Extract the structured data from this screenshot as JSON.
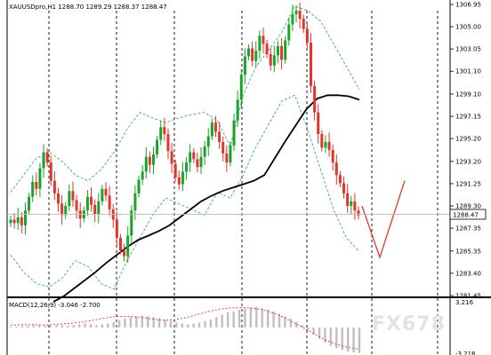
{
  "chart_header": {
    "symbol_text": "XAUUSDpro,H1  1288.70  1289.29  1288.37  1288.47"
  },
  "macd_header": {
    "text": "MACD(12,26,9) -3.046 -2.700"
  },
  "current_price": "1288.47",
  "watermark": "FX678",
  "colors": {
    "bull_candle": "#18a329",
    "bear_candle": "#e0362c",
    "moving_average": "#000000",
    "bollinger_bands": "#33b56a",
    "projection": "#e0362c",
    "period_separator": "#000000",
    "macd_histogram": "#bfbfbf",
    "macd_signal": "#e0362c"
  },
  "chart_data": [
    {
      "type": "candlestick",
      "title": "XAUUSDpro,H1",
      "symbol": "XAUUSDpro",
      "timeframe": "H1",
      "ohlc_last": {
        "open": 1288.7,
        "high": 1289.29,
        "low": 1288.37,
        "close": 1288.47
      },
      "y_ticks": [
        "1306.95",
        "1305.00",
        "1303.05",
        "1301.10",
        "1299.10",
        "1297.15",
        "1295.20",
        "1293.20",
        "1291.25",
        "1289.30",
        "1287.35",
        "1285.35",
        "1283.40",
        "1281.45"
      ],
      "ylim": [
        1281.45,
        1306.95
      ],
      "current_price": 1288.47,
      "closes": [
        1288.1,
        1287.8,
        1288.3,
        1287.6,
        1288.9,
        1290.1,
        1291.4,
        1290.8,
        1292.6,
        1294.0,
        1293.1,
        1291.5,
        1290.4,
        1289.5,
        1288.5,
        1289.3,
        1290.6,
        1289.8,
        1288.9,
        1288.2,
        1288.9,
        1290.1,
        1289.4,
        1288.6,
        1289.7,
        1290.8,
        1290.2,
        1289.0,
        1288.1,
        1286.5,
        1285.4,
        1284.9,
        1286.7,
        1288.9,
        1290.4,
        1291.6,
        1292.3,
        1293.6,
        1292.9,
        1293.8,
        1295.1,
        1296.2,
        1295.6,
        1294.1,
        1293.0,
        1291.8,
        1291.2,
        1292.3,
        1293.1,
        1294.0,
        1293.4,
        1292.7,
        1293.6,
        1294.5,
        1295.4,
        1296.6,
        1295.8,
        1294.9,
        1293.9,
        1293.1,
        1294.6,
        1296.8,
        1298.6,
        1300.8,
        1302.4,
        1303.1,
        1302.0,
        1302.9,
        1304.2,
        1303.5,
        1302.6,
        1301.6,
        1302.5,
        1303.3,
        1302.1,
        1303.8,
        1305.2,
        1306.1,
        1306.4,
        1305.7,
        1304.8,
        1303.6,
        1299.8,
        1297.5,
        1295.6,
        1294.4,
        1294.9,
        1294.2,
        1293.1,
        1292.0,
        1291.3,
        1290.4,
        1289.3,
        1289.7,
        1288.9,
        1288.47
      ],
      "moving_average": [
        1280.9,
        1281.4,
        1282.1,
        1282.8,
        1283.5,
        1284.3,
        1285.0,
        1285.7,
        1286.3,
        1286.7,
        1287.1,
        1287.6,
        1288.3,
        1289.0,
        1289.7,
        1290.2,
        1290.6,
        1290.9,
        1291.2,
        1291.5,
        1292.0,
        1293.5,
        1295.0,
        1296.4,
        1297.8,
        1298.7,
        1299.0,
        1299.0,
        1298.9,
        1298.6
      ],
      "bollinger_upper": [
        1290.5,
        1292.0,
        1293.5,
        1294.0,
        1293.2,
        1292.0,
        1291.5,
        1292.5,
        1294.0,
        1296.0,
        1297.5,
        1297.0,
        1296.6,
        1297.0,
        1297.3,
        1297.5,
        1296.8,
        1294.5,
        1299.0,
        1301.5,
        1303.0,
        1304.5,
        1306.8,
        1306.4,
        1305.5,
        1303.5,
        1301.5,
        1299.5
      ],
      "bollinger_lower": [
        1285.0,
        1283.5,
        1282.5,
        1282.2,
        1283.0,
        1284.5,
        1284.0,
        1282.5,
        1282.0,
        1284.5,
        1286.5,
        1288.5,
        1290.0,
        1289.5,
        1289.0,
        1288.5,
        1290.5,
        1290.0,
        1292.0,
        1294.5,
        1296.5,
        1298.5,
        1299.0,
        1296.0,
        1292.5,
        1289.0,
        1286.5,
        1285.3
      ],
      "projection": [
        1289.3,
        1284.8,
        1291.5
      ],
      "grid": false,
      "legend": "none"
    },
    {
      "type": "bar",
      "title": "MACD(12,26,9)",
      "values_label": "-3.046 -2.700",
      "y_ticks": [
        "3.216",
        "-3.216"
      ],
      "histogram": [
        0.1,
        0.1,
        0.2,
        0.2,
        0.3,
        0.3,
        0.2,
        0.2,
        0.3,
        0.3,
        0.2,
        0.3,
        0.4,
        0.5,
        0.4,
        0.3,
        0.4,
        0.5,
        0.7,
        0.9,
        1.1,
        1.3,
        1.4,
        1.5,
        1.4,
        1.3,
        1.2,
        1.0,
        0.8,
        0.6,
        0.5,
        0.4,
        0.5,
        0.6,
        0.8,
        1.0,
        1.3,
        1.6,
        1.9,
        2.0,
        2.2,
        2.4,
        2.5,
        2.6,
        2.4,
        2.2,
        2.0,
        1.7,
        1.4,
        1.1,
        0.7,
        0.3,
        -0.3,
        -0.9,
        -1.4,
        -1.9,
        -2.3,
        -2.6,
        -2.8,
        -3.0,
        -3.1,
        -3.2
      ],
      "signal": [
        0.3,
        0.35,
        0.35,
        0.3,
        0.4,
        0.5,
        0.65,
        0.9,
        1.15,
        1.35,
        1.4,
        1.3,
        1.1,
        0.9,
        0.95,
        1.2,
        1.6,
        2.0,
        2.3,
        2.45,
        2.5,
        2.4,
        2.1,
        1.6,
        0.9,
        0.1,
        -0.7,
        -1.5,
        -2.1,
        -2.5,
        -2.7
      ],
      "ylim": [
        -3.216,
        3.216
      ]
    }
  ]
}
